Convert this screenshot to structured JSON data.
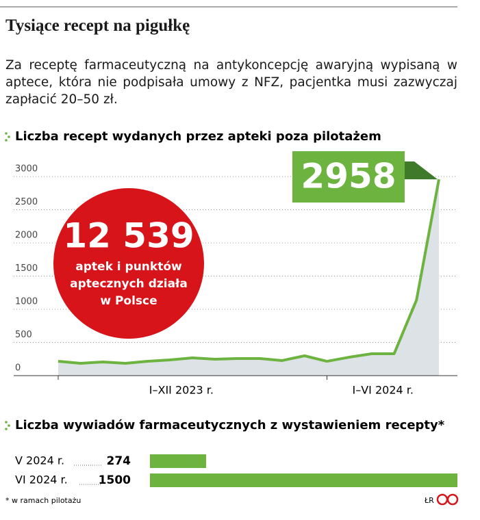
{
  "header": {
    "title": "Tysiące recept na pigułkę",
    "description": "Za receptę farmaceutyczną na antykoncepcję awaryjną wypisaną w aptece, która nie podpisała umowy z NFZ, pacjentka musi zazwyczaj zapłacić 20–50 zł."
  },
  "chart_data": [
    {
      "type": "area-line",
      "title": "Liczba recept wydanych przez apteki poza pilotażem",
      "categories": [
        "I–XII 2023 r.",
        "I–XII 2023 r.",
        "I–XII 2023 r.",
        "I–XII 2023 r.",
        "I–XII 2023 r.",
        "I–XII 2023 r.",
        "I–XII 2023 r.",
        "I–XII 2023 r.",
        "I–XII 2023 r.",
        "I–XII 2023 r.",
        "I–XII 2023 r.",
        "I–XII 2023 r.",
        "I–VI 2024 r.",
        "I–VI 2024 r.",
        "I–VI 2024 r.",
        "I–VI 2024 r.",
        "I–VI 2024 r.",
        "I–VI 2024 r."
      ],
      "values": [
        216,
        186,
        206,
        186,
        216,
        237,
        268,
        247,
        258,
        258,
        227,
        299,
        216,
        278,
        330,
        330,
        1140,
        2958
      ],
      "color": "#6cb33f",
      "area_color": "#dde2e6",
      "ylim": [
        0,
        3000
      ],
      "yticks": [
        0,
        500,
        1000,
        1500,
        2000,
        2500,
        3000
      ],
      "grid": true,
      "highlight_color": "#6cb33f",
      "annotation": {
        "number": "12 539",
        "lines": [
          "aptek i punktów",
          "aptecznych działa",
          "w Polsce"
        ],
        "color": "#d7141a"
      }
    },
    {
      "type": "hbar",
      "title": "Liczba wywiadów farmaceutycznych z wystawieniem recepty*",
      "categories": [
        "V 2024 r.",
        "VI 2024 r."
      ],
      "values": [
        274,
        1500
      ],
      "color": "#6cb33f"
    }
  ],
  "footer": {
    "note": "* w ramach pilotażu",
    "credit": "ŁR"
  }
}
